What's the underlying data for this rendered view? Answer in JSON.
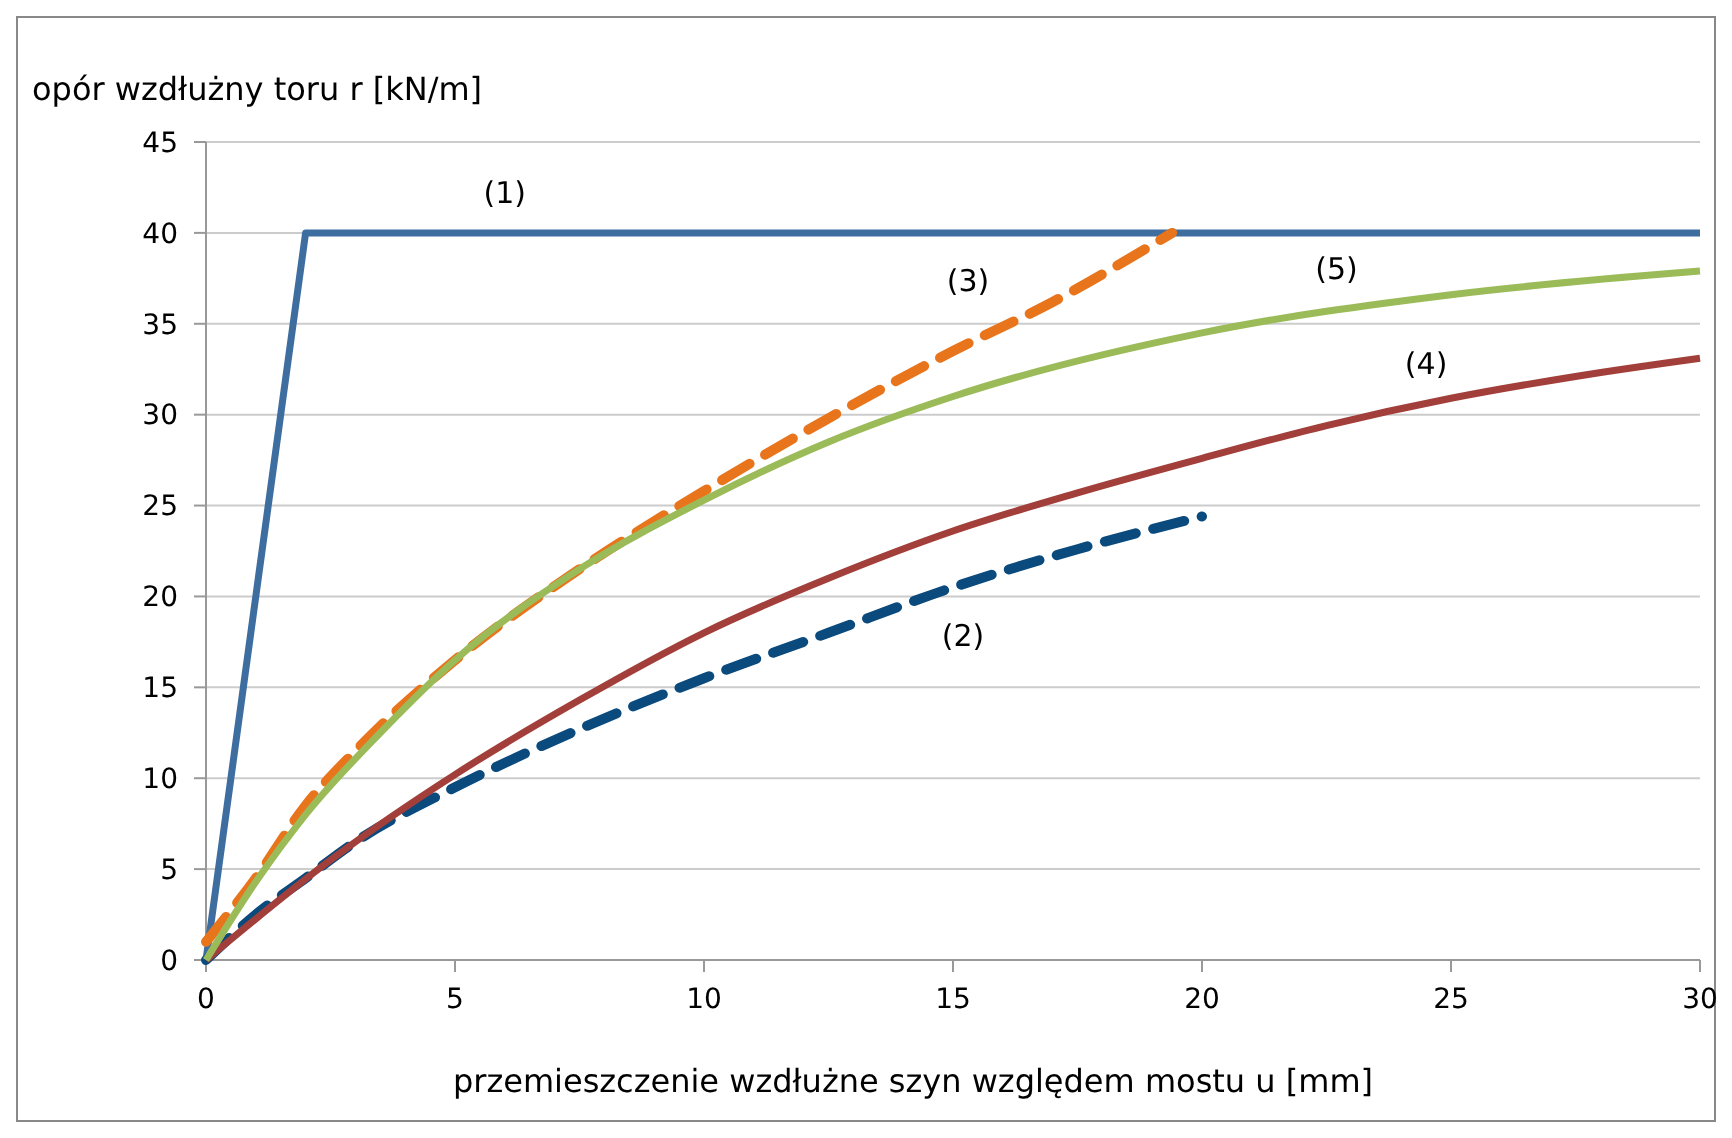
{
  "chart_data": {
    "type": "line",
    "xlabel": "przemieszczenie wzdłużne szyn względem mostu  u [mm]",
    "ylabel": "opór wzdłużny toru  r  [kN/m]",
    "xlim": [
      0,
      30
    ],
    "xticks": [
      0,
      5,
      10,
      15,
      20,
      25,
      30
    ],
    "ylim": [
      0,
      45
    ],
    "yticks": [
      0,
      5,
      10,
      15,
      20,
      25,
      30,
      35,
      40,
      45
    ],
    "grid": "y",
    "series": [
      {
        "name": "(1)",
        "color": "#3e6da0",
        "line_style": "solid",
        "x": [
          0,
          2,
          30
        ],
        "values": [
          0,
          40,
          40
        ]
      },
      {
        "name": "(2)",
        "color": "#0b4a7d",
        "line_style": "dashed",
        "x": [
          0,
          1,
          2,
          3,
          5,
          7.5,
          10,
          12.5,
          15,
          17.5,
          20
        ],
        "values": [
          0,
          2.5,
          4.5,
          6.5,
          9.5,
          12.7,
          15.5,
          18,
          20.5,
          22.6,
          24.4
        ]
      },
      {
        "name": "(3)",
        "color": "#e8741c",
        "line_style": "dashed",
        "x": [
          0,
          1,
          2,
          3,
          5,
          7.5,
          10,
          12.5,
          15,
          17,
          19.4
        ],
        "values": [
          1,
          4.5,
          8.5,
          11.5,
          16.5,
          21.5,
          25.8,
          29.8,
          33.5,
          36.2,
          40
        ]
      },
      {
        "name": "(4)",
        "color": "#a23f3a",
        "line_style": "solid",
        "x": [
          0,
          2.5,
          5,
          7.5,
          10,
          12.5,
          15,
          17.5,
          20,
          22.5,
          25,
          27.5,
          30
        ],
        "values": [
          0,
          5.5,
          10.2,
          14.3,
          18,
          21,
          23.6,
          25.7,
          27.6,
          29.4,
          30.9,
          32.1,
          33.1
        ]
      },
      {
        "name": "(5)",
        "color": "#9bbb59",
        "line_style": "solid",
        "x": [
          0,
          1,
          2,
          3.5,
          5,
          7.5,
          10,
          12.5,
          15,
          20,
          25,
          30
        ],
        "values": [
          0,
          4.3,
          8,
          12.5,
          16.5,
          21.5,
          25.3,
          28.5,
          31,
          34.5,
          36.6,
          37.9
        ]
      }
    ]
  }
}
